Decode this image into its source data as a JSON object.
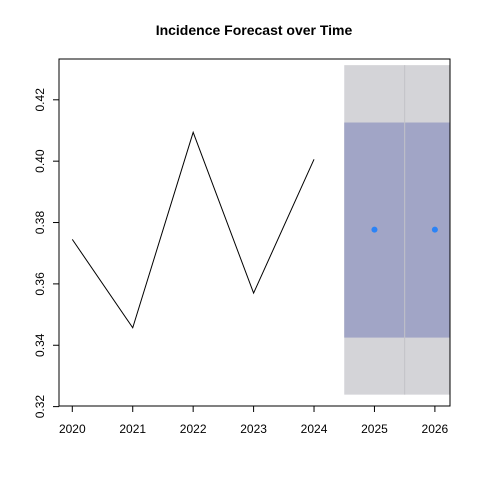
{
  "chart_data": {
    "type": "line",
    "title": "Incidence Forecast over Time",
    "xlabel": "",
    "ylabel": "",
    "x": [
      2020,
      2021,
      2022,
      2023,
      2024
    ],
    "series": [
      {
        "values": [
          0.3745,
          0.3457,
          0.4094,
          0.357,
          0.4006
        ]
      }
    ],
    "forecast": {
      "x": [
        2025,
        2026
      ],
      "point": [
        0.3777,
        0.3777
      ],
      "lower_80": [
        0.3425,
        0.3425
      ],
      "upper_80": [
        0.4126,
        0.4126
      ],
      "lower_95": [
        0.3239,
        0.3239
      ],
      "upper_95": [
        0.4313,
        0.4313
      ]
    },
    "xticks": [
      "2020",
      "2021",
      "2022",
      "2023",
      "2024",
      "2025",
      "2026"
    ],
    "yticks": [
      "0.32",
      "0.34",
      "0.36",
      "0.38",
      "0.40",
      "0.42"
    ],
    "xlim": [
      2019.78,
      2026.25
    ],
    "ylim": [
      0.3202,
      0.4333
    ],
    "grid": false,
    "legend": "none",
    "colors": {
      "line": "#000000",
      "point": "#2b83f6",
      "band_95": "#d4d4d8",
      "band_80": "#a1a5c6",
      "axis": "#000000"
    }
  }
}
